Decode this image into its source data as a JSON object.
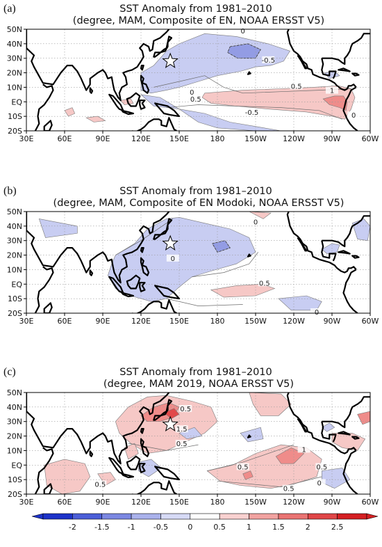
{
  "panels": [
    {
      "label": "(a)",
      "title_line1": "SST Anomaly from 1981–2010",
      "title_line2": "(degree, MAM, Composite of EN, NOAA ERSST V5)",
      "contour_labels": [
        "0",
        "0",
        "0",
        "-0.5",
        "0.5",
        "0.5",
        "1",
        "-0.5"
      ],
      "colors": {
        "pos_light": "#f6c8c6",
        "pos_mid": "#ef8c8a",
        "neg_light": "#c8cdf2",
        "neg_mid": "#939ce4"
      }
    },
    {
      "label": "(b)",
      "title_line1": "SST Anomaly from 1981–2010",
      "title_line2": "(degree, MAM, Composite of EN Modoki, NOAA ERSST V5)",
      "contour_labels": [
        "0",
        "0",
        "0.5",
        "0"
      ],
      "colors": {
        "pos_light": "#f6c8c6",
        "neg_light": "#c8cdf2",
        "neg_mid": "#939ce4"
      }
    },
    {
      "label": "(c)",
      "title_line1": "SST Anomaly from 1981–2010",
      "title_line2": "(degree, MAM 2019, NOAA ERSST V5)",
      "contour_labels": [
        "0.5",
        "1.5",
        "0.5",
        "1",
        "0.5",
        "0.5",
        "0",
        "0.5",
        "0.5"
      ],
      "colors": {
        "pos_light": "#f6c8c6",
        "pos_mid": "#ef8c8a",
        "pos_strong": "#e2494a",
        "neg_light": "#c8cdf2"
      }
    }
  ],
  "axes": {
    "x_ticks": [
      "30E",
      "60E",
      "90E",
      "120E",
      "150E",
      "180",
      "150W",
      "120W",
      "90W",
      "60W"
    ],
    "y_ticks": [
      "50N",
      "40N",
      "30N",
      "20N",
      "10N",
      "EQ",
      "10S",
      "20S"
    ],
    "lon_range": [
      30,
      300
    ],
    "lat_range": [
      -20,
      50
    ],
    "grid": "dotted"
  },
  "colorbar": {
    "labels": [
      "-2",
      "-1.5",
      "-1",
      "-0.5",
      "0",
      "0.5",
      "1",
      "1.5",
      "2",
      "2.5"
    ],
    "colors": [
      "#1d33c9",
      "#4c5fd8",
      "#7c88e2",
      "#aab2ec",
      "#d6daf6",
      "#ffffff",
      "#f9d1d0",
      "#f2a3a1",
      "#ea7473",
      "#e04648",
      "#d41f22"
    ]
  },
  "marker": "star-icon"
}
